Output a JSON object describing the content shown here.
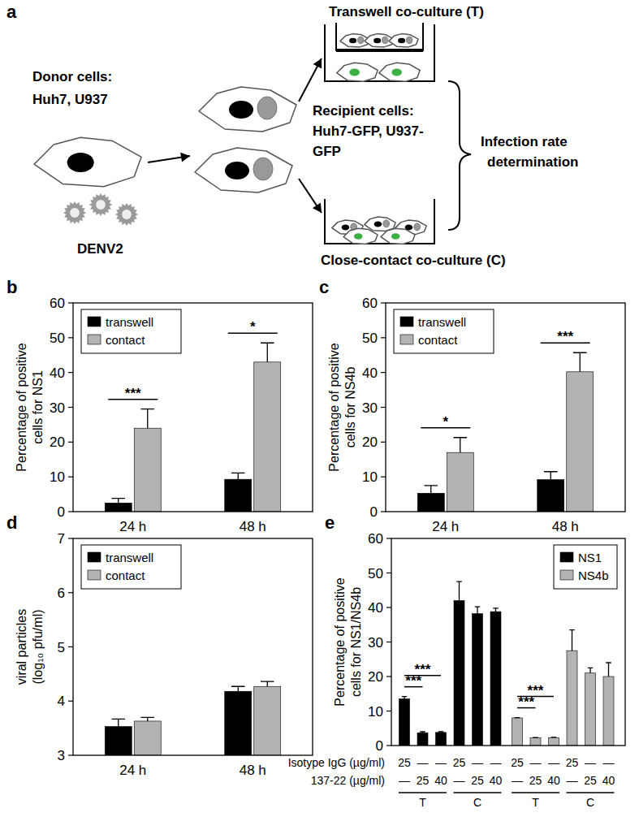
{
  "panel_a": {
    "label": "a",
    "donor_title": "Donor cells:",
    "donor_cells": "Huh7, U937",
    "virus": "DENV2",
    "transwell": "Transwell co-culture (T)",
    "recipient_title": "Recipient cells:",
    "recipient_cells": [
      "Huh7-GFP, U937-",
      "GFP"
    ],
    "contact": "Close-contact co-culture (C)",
    "readout": [
      "Infection rate",
      "determination"
    ]
  },
  "chart_data": [
    {
      "panel": "b",
      "type": "bar",
      "categories": [
        "24 h",
        "48 h"
      ],
      "y_label": [
        "Percentage of positive",
        "cells for NS1"
      ],
      "ylim": [
        0,
        60
      ],
      "yticks": [
        0,
        10,
        20,
        30,
        40,
        50,
        60
      ],
      "legend": "upper left",
      "series": [
        {
          "name": "transwell",
          "color": "#000000",
          "values": [
            2.5,
            9.3
          ],
          "errors": [
            1.3,
            1.8
          ]
        },
        {
          "name": "contact",
          "color": "#b3b3b3",
          "values": [
            24,
            43
          ],
          "errors": [
            5.5,
            5.5
          ]
        }
      ],
      "annotations": [
        {
          "text": "***",
          "category": "24 h"
        },
        {
          "text": "*",
          "category": "48 h"
        }
      ]
    },
    {
      "panel": "c",
      "type": "bar",
      "categories": [
        "24 h",
        "48 h"
      ],
      "y_label": [
        "Percentage of positive",
        "cells for NS4b"
      ],
      "ylim": [
        0,
        60
      ],
      "yticks": [
        0,
        10,
        20,
        30,
        40,
        50,
        60
      ],
      "legend": "upper left",
      "series": [
        {
          "name": "transwell",
          "color": "#000000",
          "values": [
            5.3,
            9.2
          ],
          "errors": [
            2.2,
            2.3
          ]
        },
        {
          "name": "contact",
          "color": "#b3b3b3",
          "values": [
            17,
            40.2
          ],
          "errors": [
            4.3,
            5.5
          ]
        }
      ],
      "annotations": [
        {
          "text": "*",
          "category": "24 h"
        },
        {
          "text": "***",
          "category": "48 h"
        }
      ]
    },
    {
      "panel": "d",
      "type": "bar",
      "categories": [
        "24 h",
        "48 h"
      ],
      "y_label": [
        "viral particles",
        "(log₁₀ pfu/ml)"
      ],
      "ylim": [
        3,
        7
      ],
      "yticks": [
        3,
        4,
        5,
        6,
        7
      ],
      "legend": "upper left",
      "series": [
        {
          "name": "transwell",
          "color": "#000000",
          "values": [
            3.53,
            4.18
          ],
          "errors": [
            0.14,
            0.09
          ]
        },
        {
          "name": "contact",
          "color": "#b3b3b3",
          "values": [
            3.63,
            4.27
          ],
          "errors": [
            0.07,
            0.09
          ]
        }
      ]
    },
    {
      "panel": "e",
      "type": "bar",
      "y_label": [
        "Percentage of positive",
        "cells for NS1/NS4b"
      ],
      "ylim": [
        0,
        60
      ],
      "yticks": [
        0,
        10,
        20,
        30,
        40,
        50,
        60
      ],
      "legend": "upper right",
      "series": [
        {
          "name": "NS1",
          "color": "#000000",
          "values": [
            13.5,
            3.7,
            3.8,
            42,
            38.2,
            38.8
          ],
          "errors": [
            0.7,
            0.3,
            0.2,
            5.5,
            2,
            1
          ]
        },
        {
          "name": "NS4b",
          "color": "#b3b3b3",
          "values": [
            8,
            2.2,
            2.3,
            27.5,
            21,
            20
          ],
          "errors": [
            0.1,
            0.1,
            0.1,
            6,
            1.5,
            4
          ]
        }
      ],
      "conditions": [
        {
          "label": "Isotype IgG (µg/ml)",
          "values": [
            "25",
            "—",
            "—",
            "25",
            "—",
            "—"
          ]
        },
        {
          "label": "137-22 (µg/ml)",
          "values": [
            "—",
            "25",
            "40",
            "—",
            "25",
            "40"
          ]
        }
      ],
      "groups": [
        "T",
        "C"
      ],
      "annotations": [
        {
          "text": "***",
          "series": "NS1",
          "from": 0,
          "to": 1
        },
        {
          "text": "***",
          "series": "NS1",
          "from": 0,
          "to": 2
        },
        {
          "text": "***",
          "series": "NS4b",
          "from": 0,
          "to": 1
        },
        {
          "text": "***",
          "series": "NS4b",
          "from": 0,
          "to": 2
        }
      ]
    }
  ]
}
